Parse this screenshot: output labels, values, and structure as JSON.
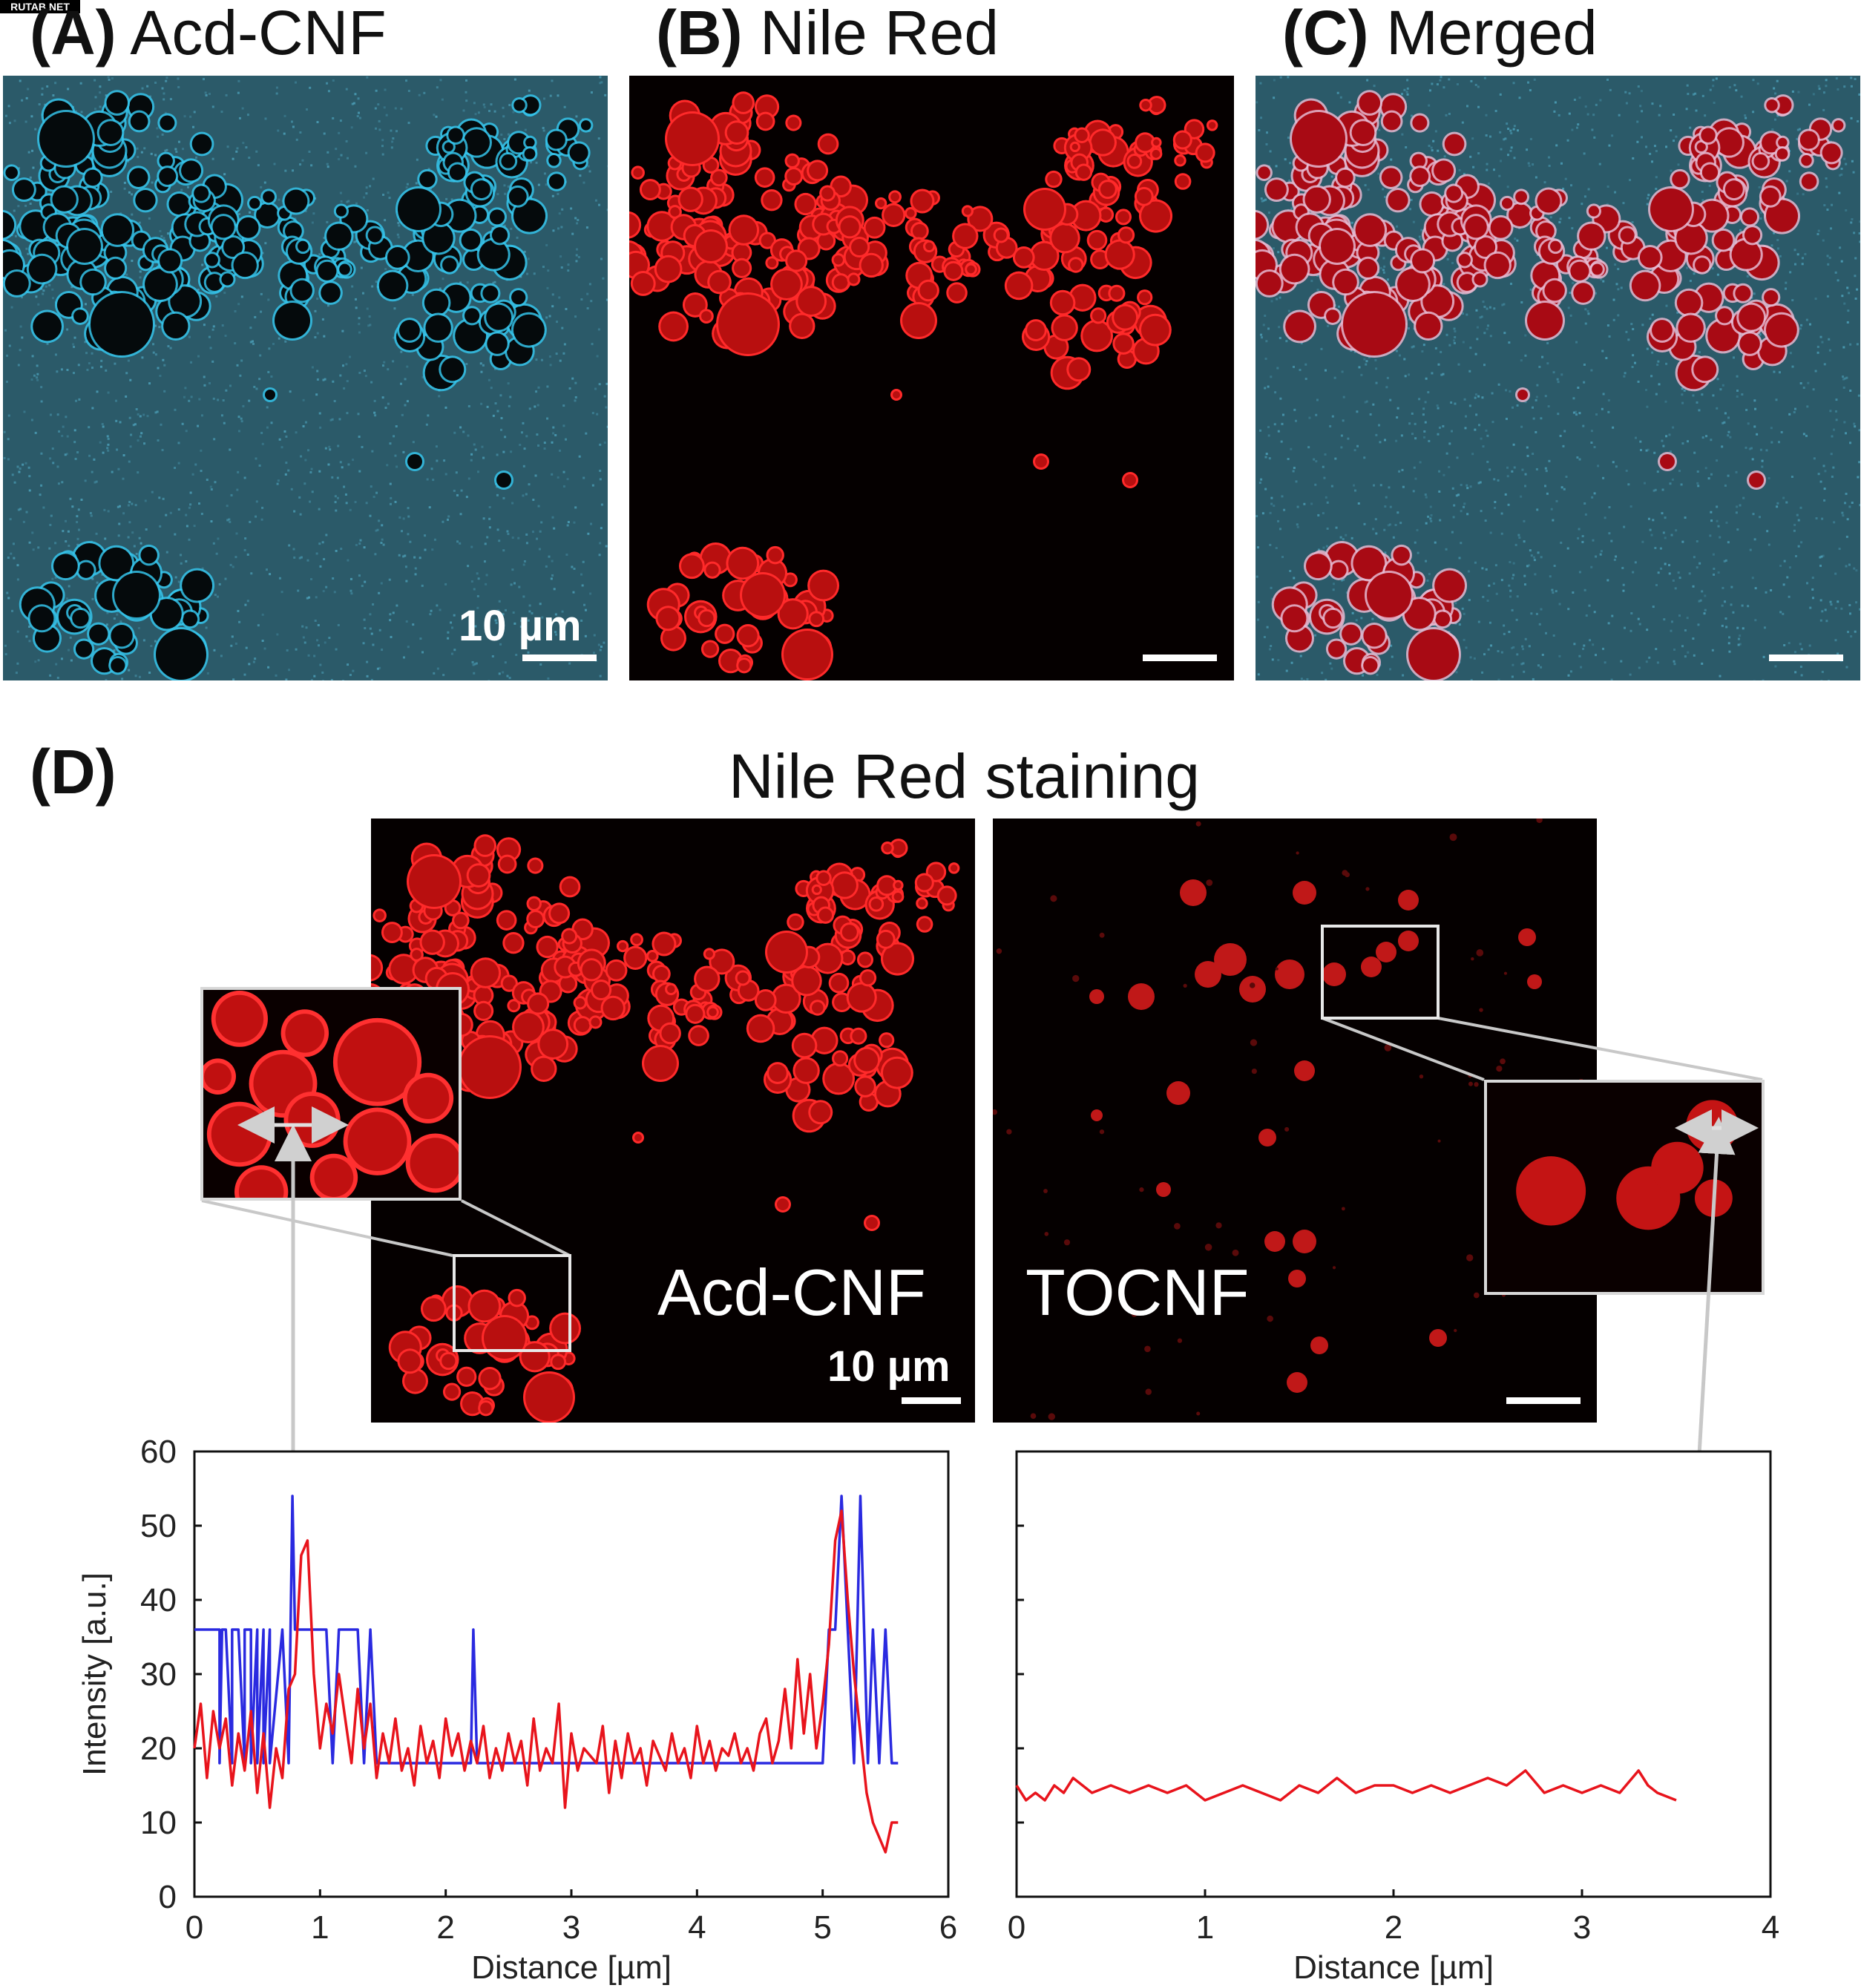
{
  "watermark": "RUTAB.NET",
  "top_panels": {
    "a": {
      "label": "(A)",
      "title": "Acd-CNF",
      "scale_text": "10 µm"
    },
    "b": {
      "label": "(B)",
      "title": "Nile Red"
    },
    "c": {
      "label": "(C)",
      "title": "Merged"
    }
  },
  "section_d": {
    "label": "(D)",
    "title": "Nile Red staining",
    "left_image_label": "Acd-CNF",
    "right_image_label": "TOCNF",
    "scale_text": "10 µm"
  },
  "colors": {
    "red_line": "#e8141c",
    "blue_line": "#2a2ae0",
    "cyan_stain": "#2fb3d6",
    "nile_red": "#d41414"
  },
  "chart_data": [
    {
      "type": "line",
      "xlabel": "Distance [µm]",
      "ylabel": "Intensity [a.u.]",
      "xlim": [
        0,
        6
      ],
      "ylim": [
        0,
        60
      ],
      "xticks": [
        "0",
        "1",
        "2",
        "3",
        "4",
        "5",
        "6"
      ],
      "yticks": [
        "0",
        "10",
        "20",
        "30",
        "40",
        "50",
        "60"
      ],
      "grid": false,
      "series": [
        {
          "color": "blue",
          "x": [
            0.0,
            0.2,
            0.2,
            0.22,
            0.25,
            0.3,
            0.3,
            0.35,
            0.4,
            0.4,
            0.45,
            0.45,
            0.5,
            0.5,
            0.55,
            0.55,
            0.6,
            0.6,
            0.7,
            0.7,
            0.75,
            0.78,
            0.8,
            0.85,
            0.9,
            1.05,
            1.1,
            1.15,
            1.15,
            1.3,
            1.35,
            1.4,
            1.45,
            1.5,
            2.2,
            2.22,
            2.25,
            3.0,
            4.0,
            5.0,
            5.05,
            5.1,
            5.15,
            5.2,
            5.25,
            5.3,
            5.33,
            5.36,
            5.4,
            5.45,
            5.5,
            5.55,
            5.6
          ],
          "y": [
            36,
            36,
            18,
            36,
            36,
            18,
            36,
            36,
            18,
            36,
            36,
            18,
            36,
            18,
            36,
            18,
            36,
            18,
            36,
            36,
            18,
            54,
            36,
            36,
            36,
            36,
            18,
            36,
            36,
            36,
            18,
            36,
            18,
            18,
            18,
            36,
            18,
            18,
            18,
            18,
            36,
            36,
            54,
            36,
            18,
            54,
            36,
            18,
            36,
            18,
            36,
            18,
            18
          ]
        },
        {
          "color": "red",
          "x": [
            0.0,
            0.05,
            0.1,
            0.15,
            0.2,
            0.25,
            0.3,
            0.35,
            0.4,
            0.45,
            0.5,
            0.55,
            0.6,
            0.65,
            0.7,
            0.75,
            0.8,
            0.85,
            0.9,
            0.95,
            1.0,
            1.05,
            1.1,
            1.15,
            1.2,
            1.25,
            1.3,
            1.35,
            1.4,
            1.45,
            1.5,
            1.55,
            1.6,
            1.65,
            1.7,
            1.75,
            1.8,
            1.85,
            1.9,
            1.95,
            2.0,
            2.05,
            2.1,
            2.15,
            2.2,
            2.25,
            2.3,
            2.35,
            2.4,
            2.45,
            2.5,
            2.55,
            2.6,
            2.65,
            2.7,
            2.75,
            2.8,
            2.85,
            2.9,
            2.95,
            3.0,
            3.05,
            3.1,
            3.15,
            3.2,
            3.25,
            3.3,
            3.35,
            3.4,
            3.45,
            3.5,
            3.55,
            3.6,
            3.65,
            3.7,
            3.75,
            3.8,
            3.85,
            3.9,
            3.95,
            4.0,
            4.05,
            4.1,
            4.15,
            4.2,
            4.25,
            4.3,
            4.35,
            4.4,
            4.45,
            4.5,
            4.55,
            4.6,
            4.65,
            4.7,
            4.75,
            4.8,
            4.85,
            4.9,
            4.95,
            5.0,
            5.05,
            5.1,
            5.15,
            5.2,
            5.25,
            5.3,
            5.35,
            5.4,
            5.45,
            5.5,
            5.55,
            5.6
          ],
          "y": [
            20,
            26,
            16,
            25,
            20,
            24,
            15,
            22,
            17,
            25,
            14,
            22,
            12,
            20,
            16,
            28,
            30,
            46,
            48,
            30,
            20,
            26,
            22,
            30,
            24,
            18,
            28,
            20,
            26,
            16,
            22,
            18,
            24,
            17,
            20,
            15,
            23,
            18,
            21,
            16,
            24,
            19,
            22,
            17,
            21,
            18,
            23,
            16,
            20,
            17,
            22,
            18,
            21,
            15,
            24,
            17,
            20,
            18,
            26,
            12,
            22,
            17,
            20,
            19,
            18,
            23,
            14,
            21,
            16,
            22,
            18,
            20,
            15,
            21,
            19,
            17,
            22,
            18,
            20,
            16,
            23,
            18,
            21,
            17,
            20,
            19,
            22,
            18,
            20,
            17,
            22,
            24,
            18,
            21,
            28,
            20,
            32,
            22,
            30,
            20,
            26,
            34,
            48,
            52,
            40,
            30,
            22,
            14,
            10,
            8,
            6,
            10,
            10
          ]
        }
      ]
    },
    {
      "type": "line",
      "xlabel": "Distance [µm]",
      "ylabel": "",
      "xlim": [
        0,
        4
      ],
      "ylim": [
        0,
        60
      ],
      "xticks": [
        "0",
        "1",
        "2",
        "3",
        "4"
      ],
      "yticks": [],
      "grid": false,
      "series": [
        {
          "color": "red",
          "x": [
            0.0,
            0.05,
            0.1,
            0.15,
            0.2,
            0.25,
            0.3,
            0.35,
            0.4,
            0.5,
            0.6,
            0.7,
            0.8,
            0.9,
            1.0,
            1.1,
            1.2,
            1.3,
            1.4,
            1.5,
            1.6,
            1.7,
            1.8,
            1.9,
            2.0,
            2.1,
            2.2,
            2.3,
            2.4,
            2.5,
            2.6,
            2.7,
            2.8,
            2.9,
            3.0,
            3.1,
            3.2,
            3.3,
            3.35,
            3.4,
            3.5
          ],
          "y": [
            15,
            13,
            14,
            13,
            15,
            14,
            16,
            15,
            14,
            15,
            14,
            15,
            14,
            15,
            13,
            14,
            15,
            14,
            13,
            15,
            14,
            16,
            14,
            15,
            15,
            14,
            15,
            14,
            15,
            16,
            15,
            17,
            14,
            15,
            14,
            15,
            14,
            17,
            15,
            14,
            13
          ]
        }
      ]
    }
  ]
}
